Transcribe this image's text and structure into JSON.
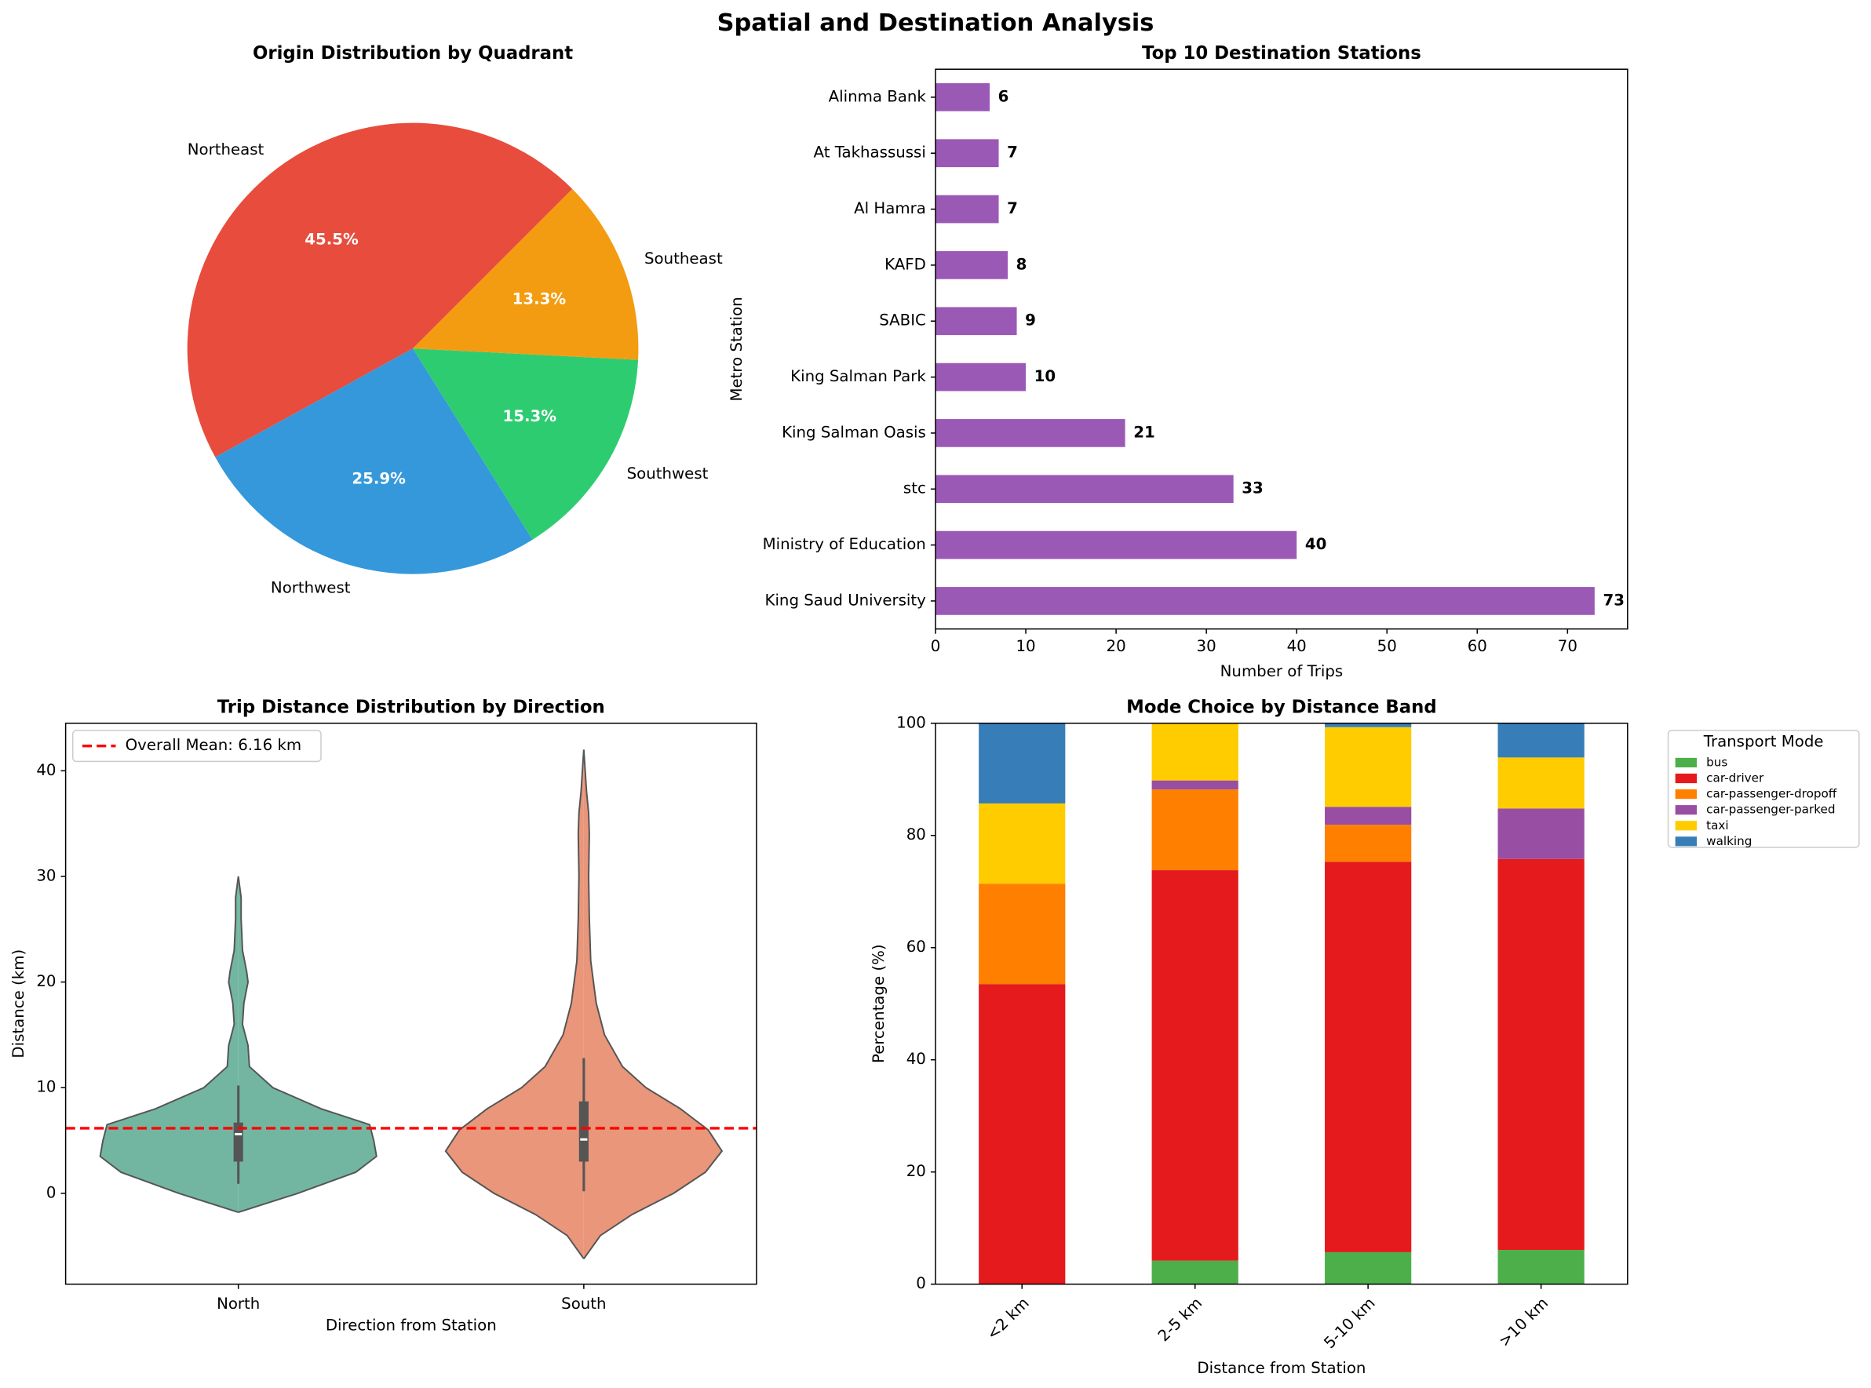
{
  "title": "Spatial and Destination Analysis",
  "chart_data": [
    {
      "type": "pie",
      "title": "Origin Distribution by Quadrant",
      "categories": [
        "Northeast",
        "Northwest",
        "Southwest",
        "Southeast"
      ],
      "values": [
        45.5,
        25.9,
        15.3,
        13.3
      ],
      "value_labels": [
        "45.5%",
        "25.9%",
        "15.3%",
        "13.3%"
      ],
      "colors": [
        "#e74c3c",
        "#3498db",
        "#2ecc71",
        "#f39c12"
      ]
    },
    {
      "type": "barh",
      "title": "Top 10 Destination Stations",
      "xlabel": "Number of Trips",
      "ylabel": "Metro Station",
      "categories": [
        "Alinma Bank",
        "At Takhassussi",
        "Al Hamra",
        "KAFD",
        "SABIC",
        "King Salman Park",
        "King Salman Oasis",
        "stc",
        "Ministry of Education",
        "King Saud University"
      ],
      "values": [
        6,
        7,
        7,
        8,
        9,
        10,
        21,
        33,
        40,
        73
      ],
      "color": "#9b59b6",
      "xlim": [
        0,
        76.65
      ],
      "xticks": [
        0,
        10,
        20,
        30,
        40,
        50,
        60,
        70
      ]
    },
    {
      "type": "violin",
      "title": "Trip Distance Distribution by Direction",
      "xlabel": "Direction from Station",
      "ylabel": "Distance (km)",
      "categories": [
        "North",
        "South"
      ],
      "series": [
        {
          "color": "#72b6a1",
          "profile_y": [
            -1.8,
            0,
            2,
            3.5,
            5,
            6.5,
            8,
            10,
            12,
            14,
            16,
            18,
            20,
            21,
            23,
            26,
            28,
            30
          ],
          "profile_width": [
            0,
            0.43,
            0.85,
            1.0,
            0.98,
            0.95,
            0.6,
            0.25,
            0.08,
            0.07,
            0.03,
            0.04,
            0.07,
            0.06,
            0.03,
            0.02,
            0.02,
            0
          ],
          "box": {
            "whislo": 0.9,
            "q1": 3.0,
            "median": 5.6,
            "q3": 6.7,
            "whishi": 10.2
          }
        },
        {
          "color": "#e9967a",
          "profile_y": [
            -6.2,
            -4,
            -2,
            0,
            2,
            4,
            6,
            8,
            10,
            12,
            15,
            18,
            22,
            26,
            30,
            34,
            36,
            38,
            40,
            42
          ],
          "profile_width": [
            0,
            0.12,
            0.35,
            0.65,
            0.88,
            1.0,
            0.9,
            0.7,
            0.45,
            0.28,
            0.15,
            0.09,
            0.05,
            0.04,
            0.035,
            0.04,
            0.035,
            0.02,
            0.01,
            0
          ],
          "box": {
            "whislo": 0.2,
            "q1": 3.0,
            "median": 5.1,
            "q3": 8.7,
            "whishi": 12.8
          }
        }
      ],
      "mean_line": {
        "value": 6.16,
        "label": "Overall Mean: 6.16 km",
        "color": "#ff0000"
      },
      "legend": "upper left",
      "ylim": [
        -8.6,
        44.5
      ],
      "yticks": [
        0,
        10,
        20,
        30,
        40
      ]
    },
    {
      "type": "stacked_bar",
      "title": "Mode Choice by Distance Band",
      "xlabel": "Distance from Station",
      "ylabel": "Percentage (%)",
      "categories": [
        "<2 km",
        "2-5 km",
        "5-10 km",
        ">10 km"
      ],
      "legend_title": "Transport Mode",
      "legend": "outside right",
      "series": [
        {
          "name": "bus",
          "color": "#4daf4a",
          "values": [
            0,
            4.2,
            5.7,
            6.1
          ]
        },
        {
          "name": "car-driver",
          "color": "#e41a1c",
          "values": [
            53.5,
            69.6,
            69.6,
            69.7
          ]
        },
        {
          "name": "car-passenger-dropoff",
          "color": "#ff7f00",
          "values": [
            17.9,
            14.4,
            6.6,
            0
          ]
        },
        {
          "name": "car-passenger-parked",
          "color": "#984ea3",
          "values": [
            0,
            1.6,
            3.2,
            9.0
          ]
        },
        {
          "name": "taxi",
          "color": "#ffcc00",
          "values": [
            14.3,
            10.2,
            14.2,
            9.1
          ]
        },
        {
          "name": "walking",
          "color": "#377eb8",
          "values": [
            14.3,
            0,
            0.7,
            6.1
          ]
        }
      ],
      "ylim": [
        0,
        100
      ],
      "yticks": [
        0,
        20,
        40,
        60,
        80,
        100
      ]
    }
  ]
}
